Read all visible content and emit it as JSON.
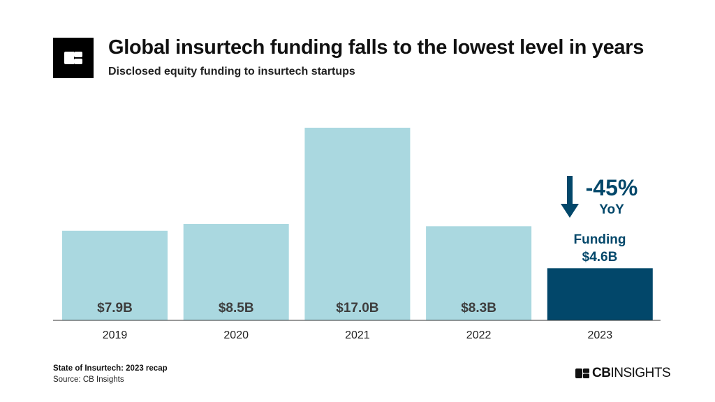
{
  "header": {
    "title": "Global insurtech funding falls to the lowest level in years",
    "subtitle": "Disclosed equity funding to insurtech startups"
  },
  "chart_data": {
    "type": "bar",
    "categories": [
      "2019",
      "2020",
      "2021",
      "2022",
      "2023"
    ],
    "values": [
      7.9,
      8.5,
      17.0,
      8.3,
      4.6
    ],
    "data_labels": [
      "$7.9B",
      "$8.5B",
      "$17.0B",
      "$8.3B",
      "$4.6B"
    ],
    "highlight_index": 4,
    "ylim": [
      0,
      17.0
    ],
    "grid": false,
    "colors": {
      "bar": "#aad8e0",
      "highlight": "#02476a",
      "label": "#3d3d3d"
    },
    "annotation": {
      "change": "-45%",
      "period": "YoY",
      "label": "Funding",
      "value": "$4.6B",
      "icon": "arrow-down-icon"
    }
  },
  "footer": {
    "report": "State of Insurtech: 2023 recap",
    "source": "Source: CB Insights",
    "brand_bold": "CB",
    "brand_light": "INSIGHTS"
  }
}
